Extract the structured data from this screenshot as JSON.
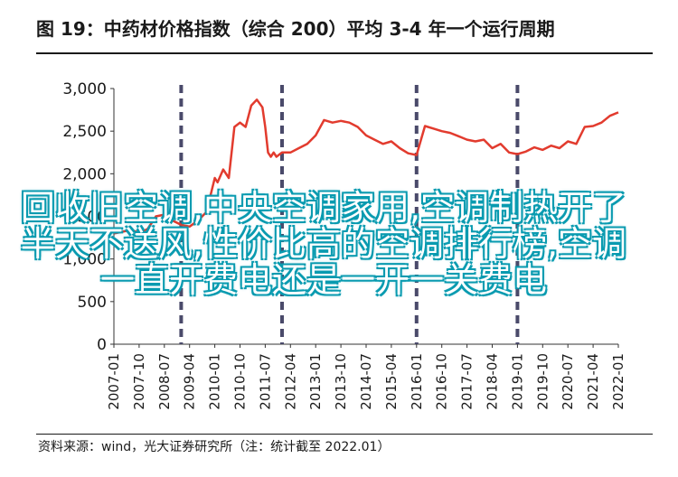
{
  "title": "图 19：中药材价格指数（综合 200）平均 3-4 年一个运行周期",
  "source": "资料来源：wind，光大证券研究所（注：统计截至 2022.01）",
  "overlay_text": "回收旧空调,中央空调家用,空调制热开了半天不送风,性价比高的空调排行榜,空调一直开费电还是一开一关费电",
  "chart_data": {
    "type": "line",
    "title": "",
    "xlabel": "",
    "ylabel": "",
    "ylim": [
      0,
      3000
    ],
    "yticks": [
      0,
      500,
      1000,
      1500,
      2000,
      2500,
      3000
    ],
    "ytick_labels": [
      "0",
      "500",
      "1,000",
      "1,500",
      "2,000",
      "2,500",
      "3,000"
    ],
    "xlim": [
      "2007-01",
      "2022-01"
    ],
    "xtick_labels": [
      "2007-01",
      "2007-10",
      "2008-07",
      "2009-04",
      "2010-01",
      "2010-10",
      "2011-07",
      "2012-04",
      "2013-01",
      "2013-10",
      "2014-07",
      "2015-04",
      "2016-01",
      "2016-10",
      "2017-07",
      "2018-04",
      "2019-01",
      "2019-10",
      "2020-07",
      "2021-04",
      "2022-01"
    ],
    "grid": false,
    "line_color": "#e23b2e",
    "marker_color": "#4a4a6a",
    "vertical_markers": [
      "2009-01",
      "2012-01",
      "2016-01",
      "2019-01"
    ],
    "series": [
      {
        "name": "",
        "x": [
          "2007-01",
          "2007-04",
          "2007-07",
          "2007-10",
          "2008-01",
          "2008-04",
          "2008-07",
          "2008-10",
          "2009-01",
          "2009-04",
          "2009-07",
          "2009-10",
          "2010-01",
          "2010-02",
          "2010-04",
          "2010-06",
          "2010-08",
          "2010-10",
          "2010-12",
          "2011-02",
          "2011-04",
          "2011-06",
          "2011-07",
          "2011-08",
          "2011-09",
          "2011-10",
          "2011-11",
          "2012-01",
          "2012-04",
          "2012-07",
          "2012-10",
          "2013-01",
          "2013-04",
          "2013-07",
          "2013-10",
          "2014-01",
          "2014-04",
          "2014-07",
          "2014-10",
          "2015-01",
          "2015-04",
          "2015-07",
          "2015-10",
          "2016-01",
          "2016-04",
          "2016-07",
          "2016-10",
          "2017-01",
          "2017-04",
          "2017-07",
          "2017-10",
          "2018-01",
          "2018-04",
          "2018-07",
          "2018-10",
          "2019-01",
          "2019-04",
          "2019-07",
          "2019-10",
          "2020-01",
          "2020-04",
          "2020-07",
          "2020-10",
          "2021-01",
          "2021-04",
          "2021-07",
          "2021-10",
          "2022-01"
        ],
        "values": [
          1300,
          1320,
          1340,
          1310,
          1350,
          1500,
          1520,
          1450,
          1400,
          1380,
          1450,
          1550,
          1950,
          1900,
          2050,
          1950,
          2550,
          2600,
          2550,
          2800,
          2870,
          2780,
          2550,
          2250,
          2200,
          2250,
          2200,
          2250,
          2250,
          2300,
          2350,
          2450,
          2630,
          2600,
          2620,
          2600,
          2550,
          2450,
          2400,
          2350,
          2380,
          2300,
          2240,
          2220,
          2560,
          2530,
          2500,
          2480,
          2440,
          2400,
          2380,
          2400,
          2300,
          2350,
          2250,
          2230,
          2260,
          2310,
          2280,
          2330,
          2300,
          2380,
          2350,
          2550,
          2560,
          2600,
          2680,
          2720
        ]
      }
    ]
  }
}
